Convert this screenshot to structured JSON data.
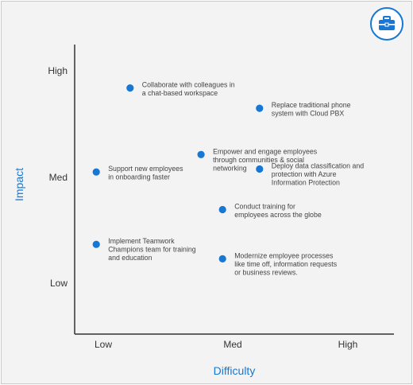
{
  "chart_data": {
    "type": "scatter",
    "xlabel": "Difficulty",
    "ylabel": "Impact",
    "x_ticks": [
      "Low",
      "Med",
      "High"
    ],
    "y_ticks": [
      "High",
      "Med",
      "Low"
    ],
    "xlim": [
      0,
      100
    ],
    "ylim": [
      0,
      100
    ],
    "grid": false,
    "colors": {
      "point": "#1678d4",
      "axis_title": "#1678d4",
      "axis_line": "#333333"
    },
    "points": [
      {
        "x": 18,
        "y": 85,
        "label": [
          "Collaborate with colleagues in",
          "a chat-based workspace"
        ]
      },
      {
        "x": 60,
        "y": 78,
        "label": [
          "Replace traditional phone",
          "system with Cloud PBX"
        ]
      },
      {
        "x": 41,
        "y": 62,
        "label": [
          "Empower and engage employees",
          "through communities & social",
          "networking"
        ]
      },
      {
        "x": 7,
        "y": 56,
        "label": [
          "Support new employees",
          "in onboarding faster"
        ]
      },
      {
        "x": 60,
        "y": 57,
        "label": [
          "Deploy data classification and",
          "protection with Azure",
          "Information Protection"
        ]
      },
      {
        "x": 48,
        "y": 43,
        "label": [
          "Conduct training for",
          "employees across the globe"
        ]
      },
      {
        "x": 7,
        "y": 31,
        "label": [
          "Implement Teamwork",
          "Champions team for training",
          "and education"
        ]
      },
      {
        "x": 48,
        "y": 26,
        "label": [
          "Modernize employee processes",
          "like time off, information requests",
          "or business reviews."
        ]
      }
    ]
  },
  "icon": "briefcase-icon"
}
